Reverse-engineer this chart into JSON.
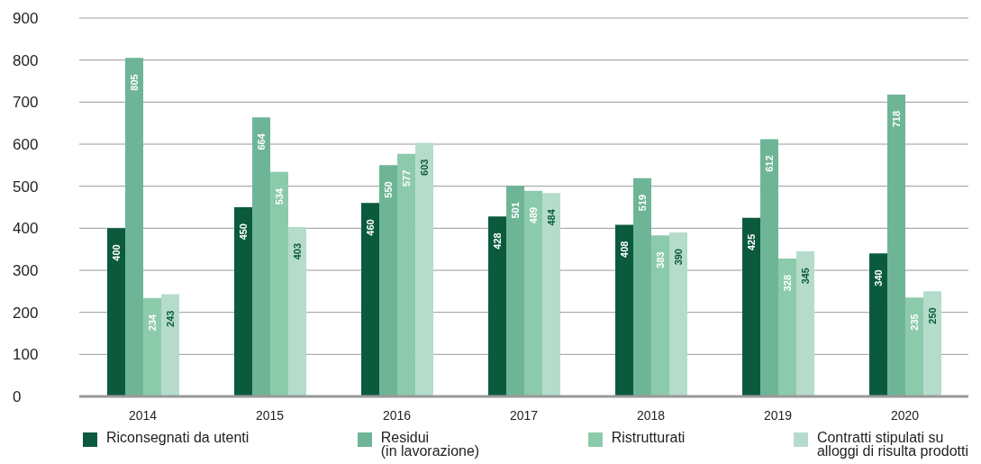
{
  "chart_data": {
    "type": "bar",
    "categories": [
      "2014",
      "2015",
      "2016",
      "2017",
      "2018",
      "2019",
      "2020"
    ],
    "series": [
      {
        "name": "Riconsegnati da utenti",
        "color": "#0b5a3e",
        "values": [
          400,
          450,
          460,
          428,
          408,
          425,
          340
        ]
      },
      {
        "name": "Residui\n(in lavorazione)",
        "color": "#6db596",
        "values": [
          805,
          664,
          550,
          501,
          519,
          612,
          718
        ]
      },
      {
        "name": "Ristrutturati",
        "color": "#8ccaac",
        "values": [
          234,
          534,
          577,
          489,
          383,
          328,
          235
        ]
      },
      {
        "name": "Contratti stipulati su\nalloggi di risulta prodotti",
        "color": "#b5dccb",
        "values": [
          243,
          403,
          603,
          484,
          390,
          345,
          250
        ]
      }
    ],
    "ylim": [
      0,
      900
    ],
    "yticks": [
      0,
      100,
      200,
      300,
      400,
      500,
      600,
      700,
      800,
      900
    ],
    "grid": "y",
    "legend": "bottom",
    "data_labels": true
  }
}
